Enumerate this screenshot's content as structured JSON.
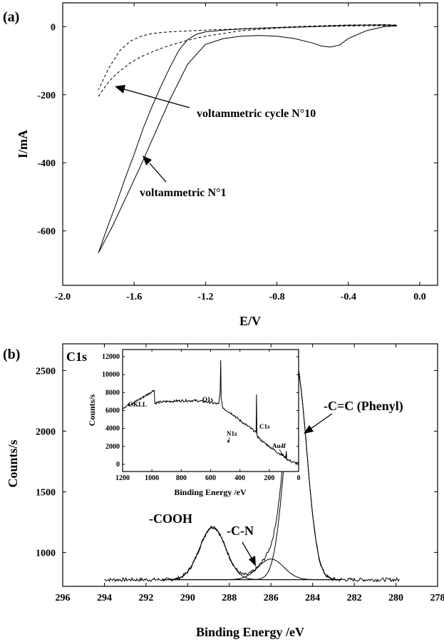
{
  "chart_data": [
    {
      "panel": "(a)",
      "type": "line",
      "xlabel": "E/V",
      "ylabel": "I/mA",
      "xlim": [
        -2.0,
        0.1
      ],
      "ylim": [
        -760,
        70
      ],
      "x_ticks": [
        "-2.0",
        "-1.6",
        "-1.2",
        "-0.8",
        "-0.4",
        "0.0"
      ],
      "y_ticks": [
        "0",
        "-200",
        "-400",
        "-600"
      ],
      "series": [
        {
          "style": "solid",
          "x": [
            -1.8,
            -1.72,
            -1.64,
            -1.56,
            -1.48,
            -1.4,
            -1.3,
            -1.2,
            -1.1,
            -1.0,
            -0.9,
            -0.8,
            -0.7,
            -0.6,
            -0.55,
            -0.5,
            -0.45,
            -0.4,
            -0.3,
            -0.2,
            -0.13,
            -0.13,
            -0.2,
            -0.4,
            -0.6,
            -0.8,
            -1.0,
            -1.1,
            -1.2,
            -1.25,
            -1.3,
            -1.35,
            -1.4,
            -1.45,
            -1.5,
            -1.55,
            -1.6,
            -1.65,
            -1.7,
            -1.75,
            -1.8
          ],
          "y": [
            -665,
            -585,
            -495,
            -405,
            -310,
            -215,
            -110,
            -52,
            -35,
            -28,
            -26,
            -28,
            -35,
            -48,
            -57,
            -60,
            -54,
            -35,
            -12,
            0,
            2,
            4,
            5,
            4,
            0,
            -3,
            -7,
            -10,
            -15,
            -22,
            -38,
            -70,
            -120,
            -175,
            -235,
            -300,
            -375,
            -445,
            -520,
            -590,
            -665
          ]
        },
        {
          "style": "dashed",
          "x": [
            -1.8,
            -1.74,
            -1.68,
            -1.62,
            -1.56,
            -1.48,
            -1.4,
            -1.3,
            -1.2,
            -1.0,
            -0.8,
            -0.6,
            -0.4,
            -0.2,
            -0.13,
            -0.13,
            -0.2,
            -0.4,
            -0.6,
            -0.8,
            -1.0,
            -1.2,
            -1.4,
            -1.5,
            -1.56,
            -1.62,
            -1.68,
            -1.74,
            -1.8
          ],
          "y": [
            -205,
            -160,
            -130,
            -106,
            -88,
            -70,
            -55,
            -40,
            -28,
            -12,
            -4,
            0,
            2,
            3,
            4,
            5,
            6,
            5,
            2,
            -2,
            -6,
            -10,
            -15,
            -20,
            -28,
            -42,
            -70,
            -120,
            -185
          ]
        }
      ],
      "annotations": [
        "voltammetric cycle N°10",
        "voltammetric N°1"
      ]
    },
    {
      "panel": "(b)",
      "type": "line",
      "title": "C1s",
      "xlabel": "Binding Energy /eV",
      "ylabel": "Counts/s",
      "xlim": [
        296,
        278
      ],
      "ylim": [
        720,
        2720
      ],
      "x_ticks": [
        "296",
        "294",
        "292",
        "290",
        "288",
        "286",
        "284",
        "282",
        "280",
        "278"
      ],
      "y_ticks": [
        "1000",
        "1500",
        "2000",
        "2500"
      ],
      "components": [
        {
          "label": "-COOH",
          "center_eV": 288.8,
          "peak_counts": 1210
        },
        {
          "label": "-C-N",
          "center_eV": 286.0,
          "peak_counts": 945
        },
        {
          "label": "-C=C (Phenyl)",
          "center_eV": 284.8,
          "peak_counts": 2530
        }
      ],
      "baseline_counts": 775
    },
    {
      "panel": "(b) inset",
      "type": "line",
      "xlabel": "Binding Energy /eV",
      "ylabel": "Counts/s",
      "xlim": [
        1200,
        0
      ],
      "ylim": [
        -800,
        12800
      ],
      "x_ticks": [
        "1200",
        "1000",
        "800",
        "600",
        "400",
        "200",
        "0"
      ],
      "y_ticks": [
        "0",
        "2000",
        "4000",
        "6000",
        "8000",
        "10000",
        "12000"
      ],
      "x": [
        1200,
        1150,
        1100,
        1060,
        1050,
        1020,
        985,
        980,
        960,
        900,
        800,
        700,
        600,
        545,
        535,
        531,
        528,
        520,
        500,
        450,
        400,
        350,
        300,
        290,
        287,
        284,
        280,
        250,
        200,
        150,
        100,
        88,
        84,
        80,
        60,
        40,
        20,
        0
      ],
      "y": [
        6300,
        6700,
        7100,
        7500,
        7600,
        7900,
        8300,
        6800,
        6900,
        7000,
        7100,
        7100,
        6900,
        6700,
        8000,
        11600,
        7500,
        6400,
        6100,
        5600,
        4900,
        4300,
        3700,
        3500,
        7800,
        3400,
        3100,
        2600,
        2000,
        1400,
        900,
        700,
        1400,
        600,
        400,
        250,
        150,
        100
      ],
      "labels": [
        "OKLL",
        "O1s",
        "N1s",
        "C1s",
        "Au4f"
      ]
    }
  ]
}
